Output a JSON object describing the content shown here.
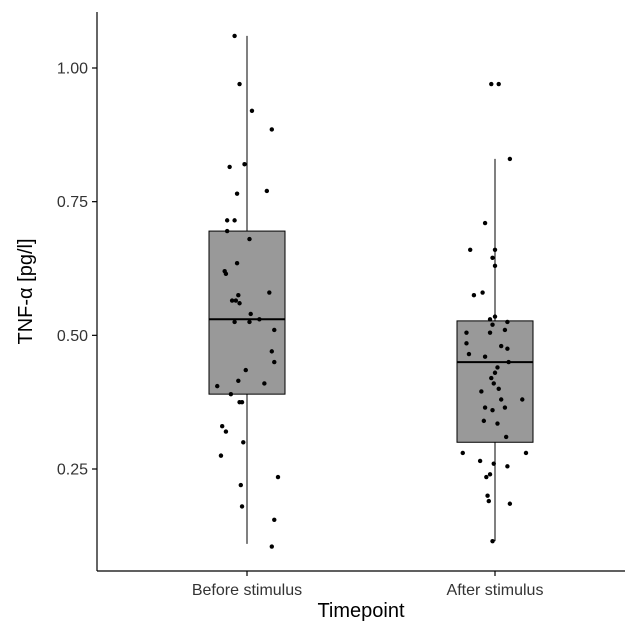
{
  "chart_data": {
    "type": "box",
    "xlabel": "Timepoint",
    "ylabel": "TNF-α [pg/l]",
    "ylim": [
      0.1,
      1.08
    ],
    "yticks": [
      0.25,
      0.5,
      0.75,
      1.0
    ],
    "ytick_labels": [
      "0.25",
      "0.50",
      "0.75",
      "1.00"
    ],
    "grid": false,
    "legend": "none",
    "colors": {
      "box_fill": "#999999",
      "stroke": "#000000",
      "point": "#000000"
    },
    "categories": [
      "Before stimulus",
      "After stimulus"
    ],
    "boxes": [
      {
        "category": "Before stimulus",
        "whisker_low": 0.11,
        "q1": 0.39,
        "median": 0.53,
        "q3": 0.695,
        "whisker_high": 1.06
      },
      {
        "category": "After stimulus",
        "whisker_low": 0.115,
        "q1": 0.3,
        "median": 0.45,
        "q3": 0.527,
        "whisker_high": 0.83
      }
    ],
    "points": [
      {
        "category": "Before stimulus",
        "values": [
          [
            -0.05,
            1.06
          ],
          [
            -0.03,
            0.97
          ],
          [
            0.02,
            0.92
          ],
          [
            0.1,
            0.885
          ],
          [
            -0.07,
            0.815
          ],
          [
            -0.01,
            0.82
          ],
          [
            0.08,
            0.77
          ],
          [
            -0.04,
            0.765
          ],
          [
            -0.08,
            0.715
          ],
          [
            -0.05,
            0.715
          ],
          [
            -0.08,
            0.695
          ],
          [
            0.01,
            0.68
          ],
          [
            -0.04,
            0.635
          ],
          [
            -0.09,
            0.62
          ],
          [
            -0.085,
            0.615
          ],
          [
            0.09,
            0.58
          ],
          [
            -0.035,
            0.575
          ],
          [
            -0.06,
            0.565
          ],
          [
            -0.045,
            0.565
          ],
          [
            -0.03,
            0.56
          ],
          [
            0.11,
            0.51
          ],
          [
            0.05,
            0.53
          ],
          [
            0.015,
            0.54
          ],
          [
            -0.05,
            0.525
          ],
          [
            0.01,
            0.525
          ],
          [
            0.1,
            0.47
          ],
          [
            0.11,
            0.45
          ],
          [
            -0.005,
            0.435
          ],
          [
            0.07,
            0.41
          ],
          [
            -0.035,
            0.415
          ],
          [
            -0.12,
            0.405
          ],
          [
            -0.065,
            0.39
          ],
          [
            -0.03,
            0.375
          ],
          [
            -0.02,
            0.375
          ],
          [
            -0.1,
            0.33
          ],
          [
            -0.085,
            0.32
          ],
          [
            -0.015,
            0.3
          ],
          [
            -0.105,
            0.275
          ],
          [
            0.125,
            0.235
          ],
          [
            -0.025,
            0.22
          ],
          [
            -0.02,
            0.18
          ],
          [
            0.11,
            0.155
          ],
          [
            0.1,
            0.105
          ]
        ]
      },
      {
        "category": "After stimulus",
        "values": [
          [
            -0.015,
            0.97
          ],
          [
            0.015,
            0.97
          ],
          [
            0.06,
            0.83
          ],
          [
            -0.04,
            0.71
          ],
          [
            -0.1,
            0.66
          ],
          [
            0.0,
            0.66
          ],
          [
            -0.01,
            0.645
          ],
          [
            0.0,
            0.63
          ],
          [
            -0.085,
            0.575
          ],
          [
            -0.05,
            0.58
          ],
          [
            0.0,
            0.535
          ],
          [
            -0.02,
            0.53
          ],
          [
            0.05,
            0.525
          ],
          [
            -0.115,
            0.505
          ],
          [
            -0.01,
            0.52
          ],
          [
            0.04,
            0.51
          ],
          [
            -0.02,
            0.505
          ],
          [
            -0.115,
            0.485
          ],
          [
            0.05,
            0.475
          ],
          [
            0.025,
            0.48
          ],
          [
            -0.105,
            0.465
          ],
          [
            -0.04,
            0.46
          ],
          [
            0.055,
            0.45
          ],
          [
            0.01,
            0.44
          ],
          [
            0.0,
            0.43
          ],
          [
            -0.015,
            0.42
          ],
          [
            -0.005,
            0.41
          ],
          [
            0.015,
            0.4
          ],
          [
            -0.055,
            0.395
          ],
          [
            0.025,
            0.38
          ],
          [
            0.11,
            0.38
          ],
          [
            -0.04,
            0.365
          ],
          [
            0.04,
            0.365
          ],
          [
            -0.01,
            0.36
          ],
          [
            -0.045,
            0.34
          ],
          [
            0.01,
            0.335
          ],
          [
            0.045,
            0.31
          ],
          [
            -0.13,
            0.28
          ],
          [
            0.125,
            0.28
          ],
          [
            -0.06,
            0.265
          ],
          [
            -0.005,
            0.26
          ],
          [
            0.05,
            0.255
          ],
          [
            -0.02,
            0.24
          ],
          [
            -0.035,
            0.235
          ],
          [
            -0.03,
            0.2
          ],
          [
            -0.025,
            0.19
          ],
          [
            0.06,
            0.185
          ],
          [
            -0.01,
            0.115
          ]
        ]
      }
    ]
  }
}
